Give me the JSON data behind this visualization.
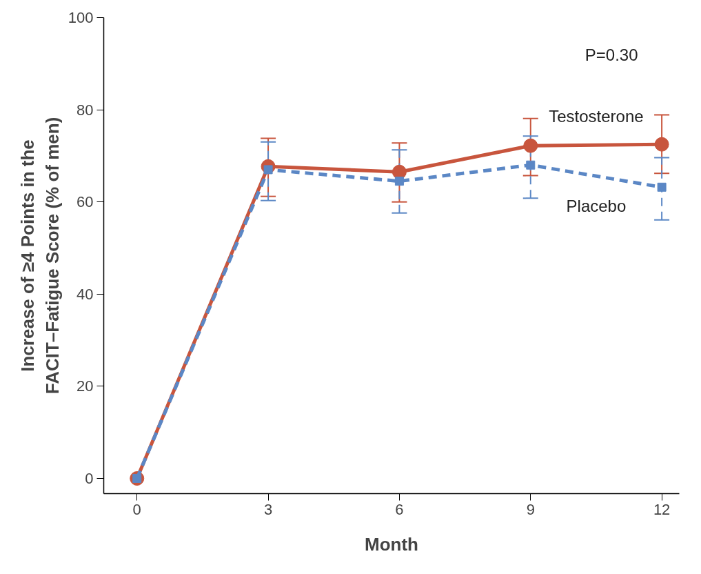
{
  "chart_data": {
    "type": "line",
    "xlabel": "Month",
    "ylabel": "Increase of ≥4 Points in the\nFACIT–Fatigue Score (% of men)",
    "x": [
      0,
      3,
      6,
      9,
      12
    ],
    "xlim": [
      -0.76,
      12.4
    ],
    "ylim": [
      -3.3,
      100
    ],
    "xticks": [
      0,
      3,
      6,
      9,
      12
    ],
    "yticks": [
      0,
      20,
      40,
      60,
      80,
      100
    ],
    "grid": false,
    "legend": false,
    "series": [
      {
        "name": "Testosterone",
        "color": "#c8553d",
        "marker": "circle",
        "line_style": "solid",
        "values": [
          0,
          67.7,
          66.5,
          72.2,
          72.5
        ],
        "errors": [
          null,
          [
            61.2,
            73.8
          ],
          [
            60.0,
            72.8
          ],
          [
            65.7,
            78.1
          ],
          [
            66.2,
            78.9
          ]
        ]
      },
      {
        "name": "Placebo",
        "color": "#5b87c5",
        "marker": "square",
        "line_style": "dashed",
        "values": [
          0,
          67.0,
          64.5,
          68.0,
          63.2
        ],
        "errors": [
          null,
          [
            60.3,
            73.0
          ],
          [
            57.6,
            71.3
          ],
          [
            60.8,
            74.3
          ],
          [
            56.1,
            69.6
          ]
        ]
      }
    ],
    "annotations": [
      "P=0.30"
    ]
  }
}
